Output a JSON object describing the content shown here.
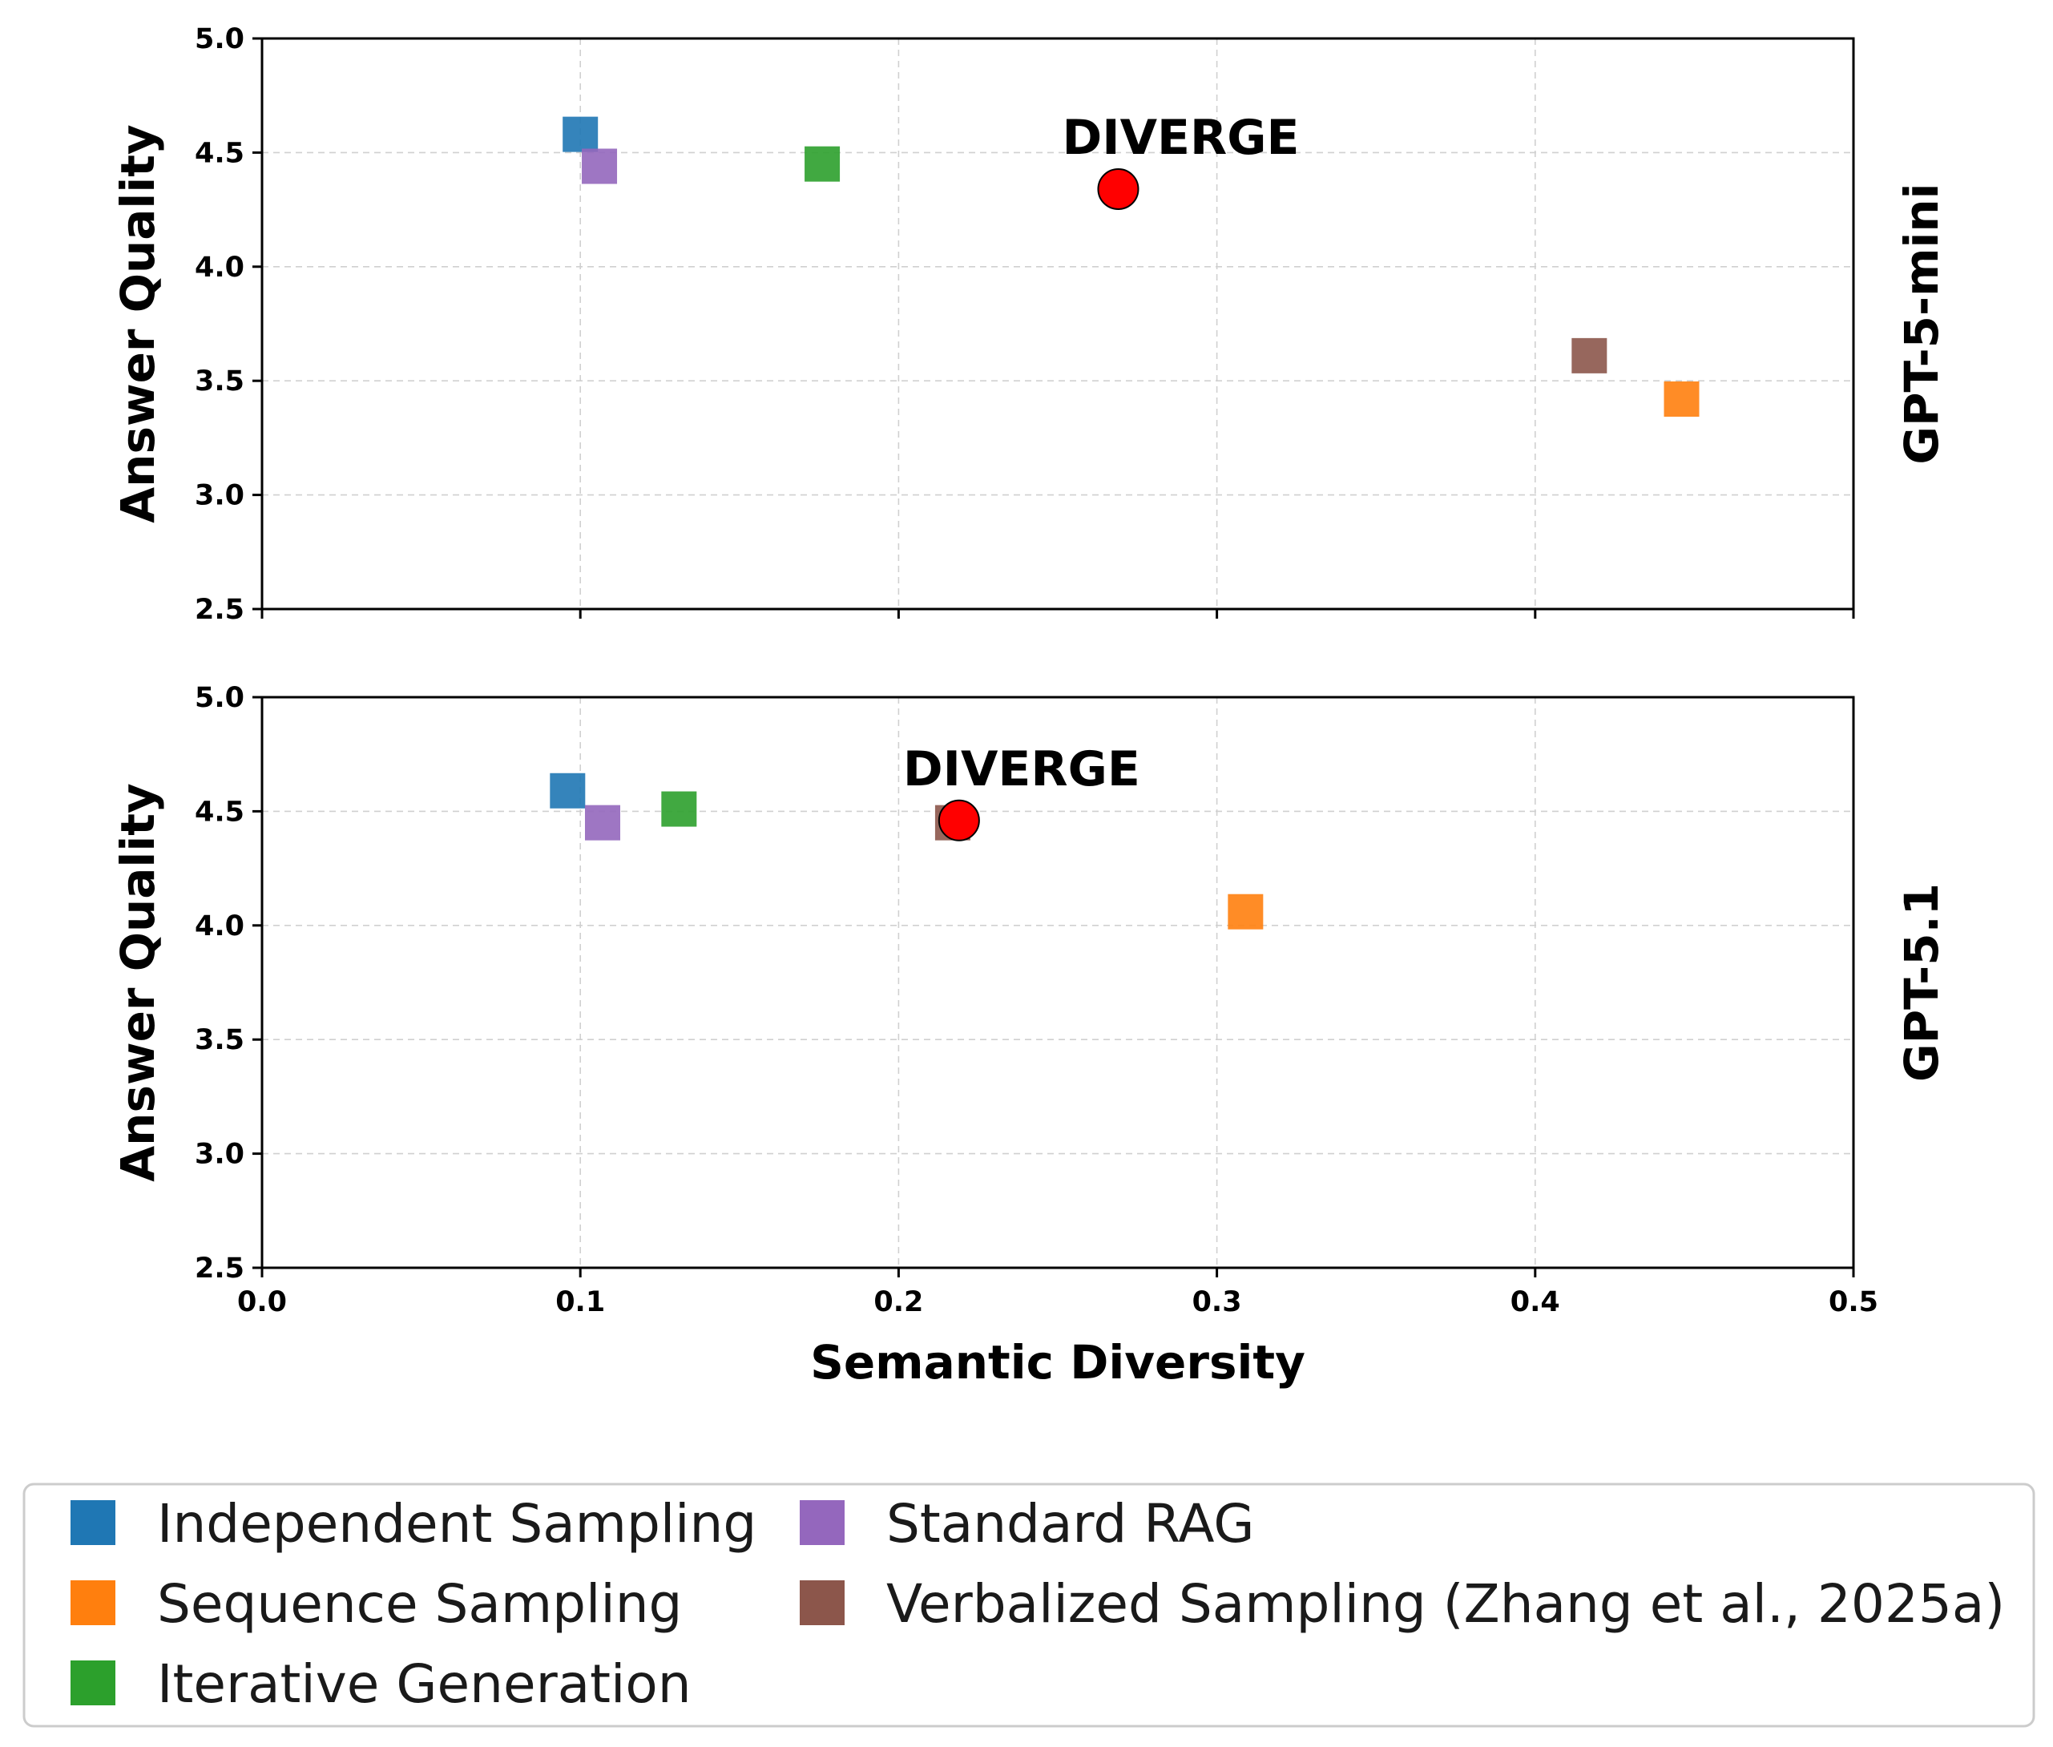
{
  "chart_data": {
    "type": "scatter",
    "xlabel": "Semantic Diversity",
    "ylabel": "Answer Quality",
    "xlim": [
      0.0,
      0.5
    ],
    "ylim": [
      2.5,
      5.0
    ],
    "xticks": [
      "0.0",
      "0.1",
      "0.2",
      "0.3",
      "0.4",
      "0.5"
    ],
    "yticks": [
      "2.5",
      "3.0",
      "3.5",
      "4.0",
      "4.5",
      "5.0"
    ],
    "grid": true,
    "legend_position": "bottom",
    "legend": [
      {
        "name": "Independent Sampling",
        "color": "#1f77b4"
      },
      {
        "name": "Standard RAG",
        "color": "#9467bd"
      },
      {
        "name": "Sequence Sampling",
        "color": "#ff7f0e"
      },
      {
        "name": "Verbalized Sampling (Zhang et al., 2025a)",
        "color": "#8c564b"
      },
      {
        "name": "Iterative Generation",
        "color": "#2ca02c"
      }
    ],
    "panels": [
      {
        "model": "GPT-5-mini",
        "annotation": "DIVERGE",
        "points": [
          {
            "series": "Independent Sampling",
            "x": 0.1,
            "y": 4.58,
            "marker": "square",
            "color": "#1f77b4"
          },
          {
            "series": "Standard RAG",
            "x": 0.106,
            "y": 4.44,
            "marker": "square",
            "color": "#9467bd"
          },
          {
            "series": "Iterative Generation",
            "x": 0.176,
            "y": 4.45,
            "marker": "square",
            "color": "#2ca02c"
          },
          {
            "series": "Verbalized Sampling (Zhang et al., 2025a)",
            "x": 0.417,
            "y": 3.61,
            "marker": "square",
            "color": "#8c564b"
          },
          {
            "series": "Sequence Sampling",
            "x": 0.446,
            "y": 3.42,
            "marker": "square",
            "color": "#ff7f0e"
          },
          {
            "series": "DIVERGE",
            "x": 0.269,
            "y": 4.34,
            "marker": "circle",
            "color": "#ff0000"
          }
        ]
      },
      {
        "model": "GPT-5.1",
        "annotation": "DIVERGE",
        "points": [
          {
            "series": "Independent Sampling",
            "x": 0.096,
            "y": 4.59,
            "marker": "square",
            "color": "#1f77b4"
          },
          {
            "series": "Standard RAG",
            "x": 0.107,
            "y": 4.45,
            "marker": "square",
            "color": "#9467bd"
          },
          {
            "series": "Iterative Generation",
            "x": 0.131,
            "y": 4.51,
            "marker": "square",
            "color": "#2ca02c"
          },
          {
            "series": "Verbalized Sampling (Zhang et al., 2025a)",
            "x": 0.217,
            "y": 4.45,
            "marker": "square",
            "color": "#8c564b"
          },
          {
            "series": "Sequence Sampling",
            "x": 0.309,
            "y": 4.06,
            "marker": "square",
            "color": "#ff7f0e"
          },
          {
            "series": "DIVERGE",
            "x": 0.219,
            "y": 4.46,
            "marker": "circle",
            "color": "#ff0000"
          }
        ]
      }
    ]
  }
}
